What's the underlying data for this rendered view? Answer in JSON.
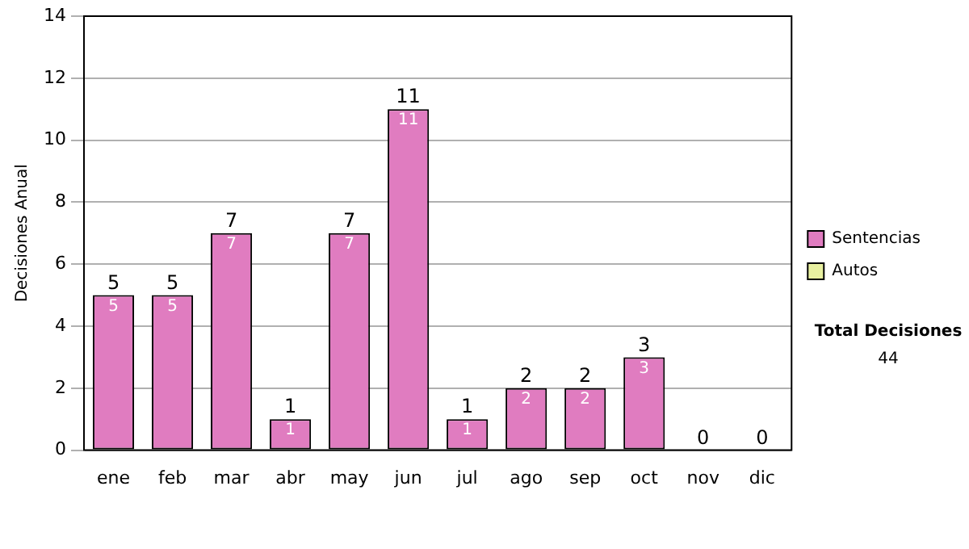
{
  "chart_data": {
    "type": "bar",
    "ylabel": "Decisiones Anual",
    "categories": [
      "ene",
      "feb",
      "mar",
      "abr",
      "may",
      "jun",
      "jul",
      "ago",
      "sep",
      "oct",
      "nov",
      "dic"
    ],
    "stacked": true,
    "series": [
      {
        "name": "Sentencias",
        "color": "#e07cc0",
        "values": [
          5,
          5,
          7,
          1,
          7,
          11,
          1,
          2,
          2,
          3,
          0,
          0
        ],
        "value_labels": [
          "5",
          "5",
          "7",
          "1",
          "7",
          "11",
          "1",
          "2",
          "2",
          "3",
          null,
          null
        ]
      },
      {
        "name": "Autos",
        "color": "#e8f0a0",
        "values": [
          0,
          0,
          0,
          0,
          0,
          0,
          0,
          0,
          0,
          0,
          0,
          0
        ]
      }
    ],
    "totals": [
      "5",
      "5",
      "7",
      "1",
      "7",
      "11",
      "1",
      "2",
      "2",
      "3",
      "0",
      "0"
    ],
    "ylim": [
      0,
      14
    ],
    "yticks": [
      0,
      2,
      4,
      6,
      8,
      10,
      12,
      14
    ],
    "grid": "y",
    "legend": "right",
    "annotations": [
      "Total Decisiones",
      "44"
    ]
  }
}
